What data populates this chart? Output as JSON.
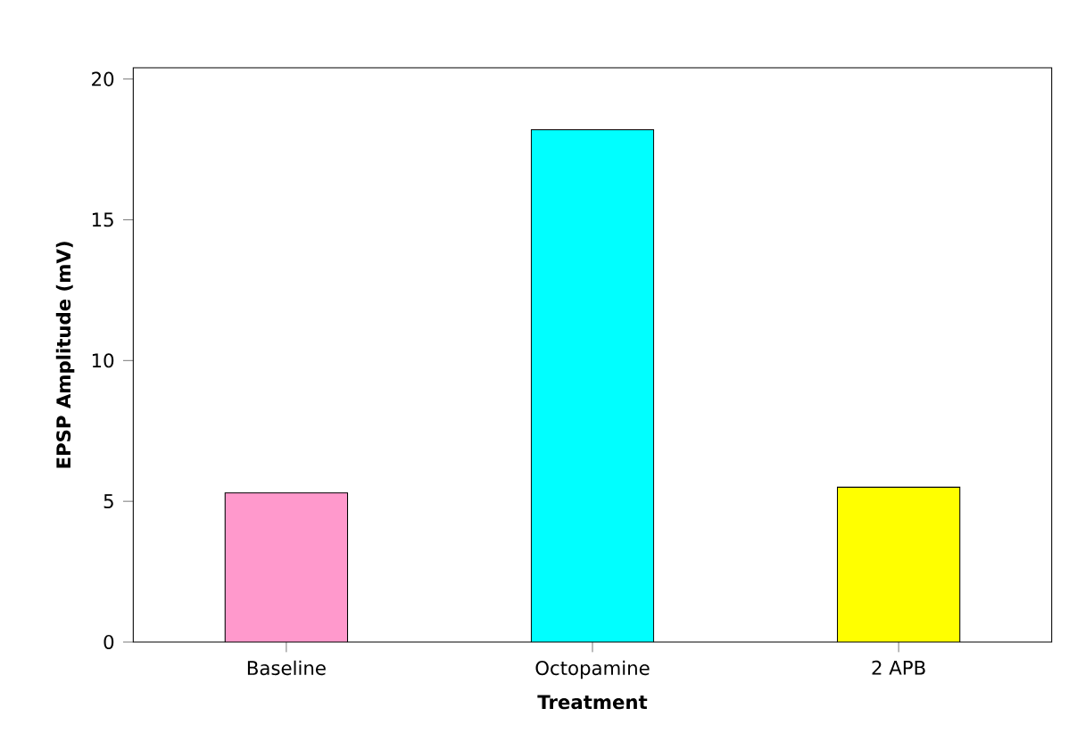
{
  "chart_data": {
    "type": "bar",
    "xlabel": "Treatment",
    "ylabel": "EPSP Amplitude (mV)",
    "categories": [
      "Baseline",
      "Octopamine",
      "2 APB"
    ],
    "values": [
      5.3,
      18.2,
      5.5
    ],
    "colors": [
      "#ff99cc",
      "#00ffff",
      "#ffff00"
    ],
    "ylim": [
      0,
      20.4
    ],
    "yticks": [
      0,
      5,
      10,
      15,
      20
    ]
  }
}
